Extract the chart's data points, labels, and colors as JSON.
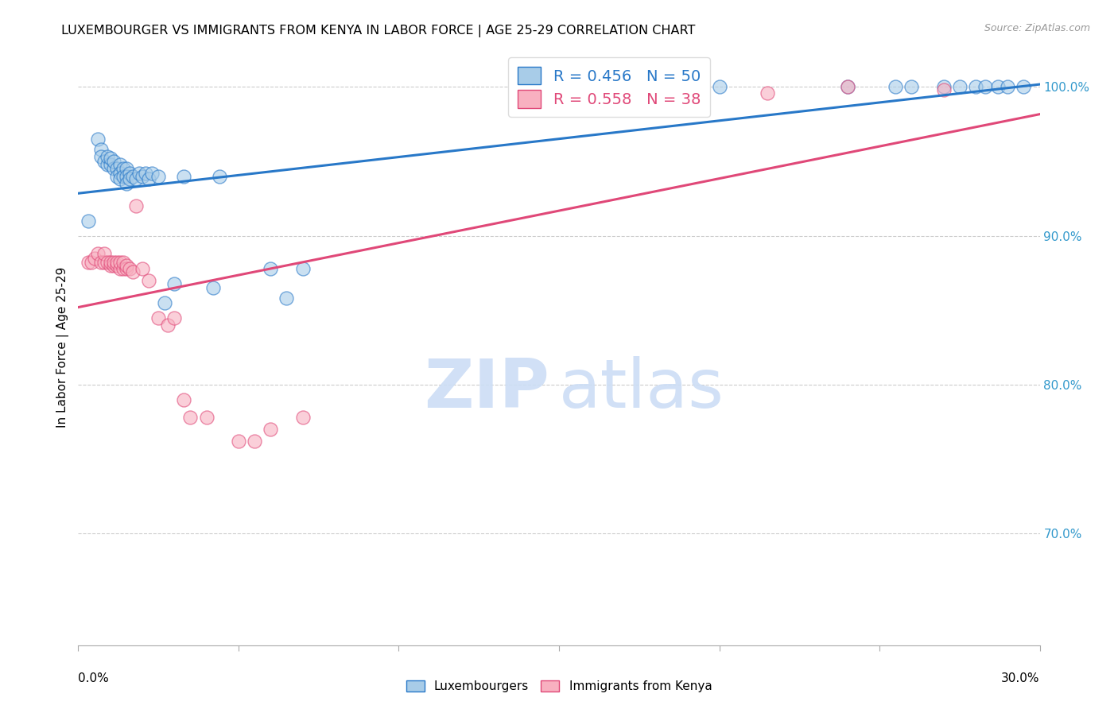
{
  "title": "LUXEMBOURGER VS IMMIGRANTS FROM KENYA IN LABOR FORCE | AGE 25-29 CORRELATION CHART",
  "source": "Source: ZipAtlas.com",
  "ylabel": "In Labor Force | Age 25-29",
  "xmin": 0.0,
  "xmax": 0.3,
  "ymin": 0.625,
  "ymax": 1.025,
  "R_blue": 0.456,
  "N_blue": 50,
  "R_pink": 0.558,
  "N_pink": 38,
  "blue_color": "#a8cce8",
  "blue_line_color": "#2878c8",
  "pink_color": "#f8b0c0",
  "pink_line_color": "#e04878",
  "legend_label_blue": "Luxembourgers",
  "legend_label_pink": "Immigrants from Kenya",
  "blue_x": [
    0.003,
    0.006,
    0.007,
    0.007,
    0.008,
    0.009,
    0.009,
    0.01,
    0.01,
    0.011,
    0.011,
    0.012,
    0.012,
    0.013,
    0.013,
    0.013,
    0.014,
    0.014,
    0.015,
    0.015,
    0.015,
    0.016,
    0.016,
    0.017,
    0.018,
    0.019,
    0.02,
    0.021,
    0.022,
    0.023,
    0.025,
    0.027,
    0.03,
    0.033,
    0.042,
    0.044,
    0.06,
    0.065,
    0.07,
    0.2,
    0.24,
    0.255,
    0.26,
    0.27,
    0.275,
    0.28,
    0.283,
    0.287,
    0.29,
    0.295
  ],
  "blue_y": [
    0.91,
    0.965,
    0.958,
    0.953,
    0.95,
    0.948,
    0.953,
    0.948,
    0.952,
    0.945,
    0.95,
    0.945,
    0.94,
    0.948,
    0.942,
    0.938,
    0.945,
    0.94,
    0.945,
    0.94,
    0.935,
    0.942,
    0.938,
    0.94,
    0.938,
    0.942,
    0.94,
    0.942,
    0.938,
    0.942,
    0.94,
    0.855,
    0.868,
    0.94,
    0.865,
    0.94,
    0.878,
    0.858,
    0.878,
    1.0,
    1.0,
    1.0,
    1.0,
    1.0,
    1.0,
    1.0,
    1.0,
    1.0,
    1.0,
    1.0
  ],
  "pink_x": [
    0.003,
    0.004,
    0.005,
    0.006,
    0.007,
    0.008,
    0.008,
    0.009,
    0.01,
    0.01,
    0.011,
    0.011,
    0.012,
    0.012,
    0.013,
    0.013,
    0.014,
    0.014,
    0.015,
    0.015,
    0.016,
    0.017,
    0.018,
    0.02,
    0.022,
    0.025,
    0.028,
    0.03,
    0.033,
    0.035,
    0.04,
    0.05,
    0.055,
    0.06,
    0.07,
    0.215,
    0.24,
    0.27
  ],
  "pink_y": [
    0.882,
    0.882,
    0.885,
    0.888,
    0.882,
    0.882,
    0.888,
    0.882,
    0.88,
    0.882,
    0.88,
    0.882,
    0.88,
    0.882,
    0.878,
    0.882,
    0.878,
    0.882,
    0.878,
    0.88,
    0.878,
    0.876,
    0.92,
    0.878,
    0.87,
    0.845,
    0.84,
    0.845,
    0.79,
    0.778,
    0.778,
    0.762,
    0.762,
    0.77,
    0.778,
    0.996,
    1.0,
    0.998
  ],
  "yticks": [
    0.7,
    0.8,
    0.9,
    1.0
  ],
  "ytick_labels": [
    "70.0%",
    "80.0%",
    "90.0%",
    "100.0%"
  ]
}
